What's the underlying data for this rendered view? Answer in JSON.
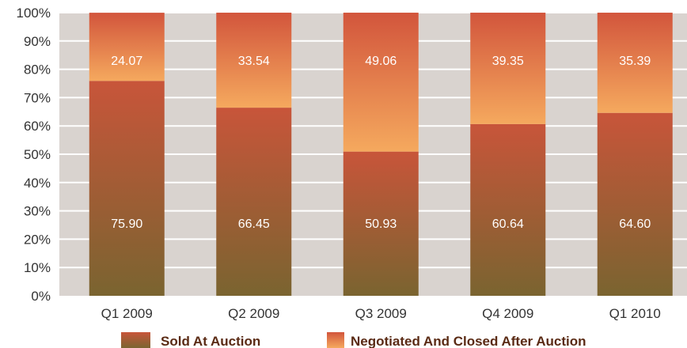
{
  "chart_data": {
    "type": "bar",
    "stacked": true,
    "categories": [
      "Q1 2009",
      "Q2 2009",
      "Q3 2009",
      "Q4 2009",
      "Q1 2010"
    ],
    "series": [
      {
        "name": "Sold At Auction",
        "values": [
          75.9,
          66.45,
          50.93,
          60.64,
          64.6
        ],
        "labels": [
          "75.90",
          "66.45",
          "50.93",
          "60.64",
          "64.60"
        ],
        "color_top": "#c8553a",
        "color_bottom": "#7a6430"
      },
      {
        "name": "Negotiated And Closed After Auction",
        "values": [
          24.07,
          33.54,
          49.06,
          39.35,
          35.39
        ],
        "labels": [
          "24.07",
          "33.54",
          "49.06",
          "39.35",
          "35.39"
        ],
        "color_top": "#d2553c",
        "color_bottom": "#f5a95e"
      }
    ],
    "yticks": [
      "0%",
      "10%",
      "20%",
      "30%",
      "40%",
      "50%",
      "60%",
      "70%",
      "80%",
      "90%",
      "100%"
    ],
    "ylim": [
      0,
      100
    ],
    "grid": true,
    "legend": "bottom",
    "plot_background": "#d9d3cf",
    "gridline_color": "#ffffff"
  }
}
